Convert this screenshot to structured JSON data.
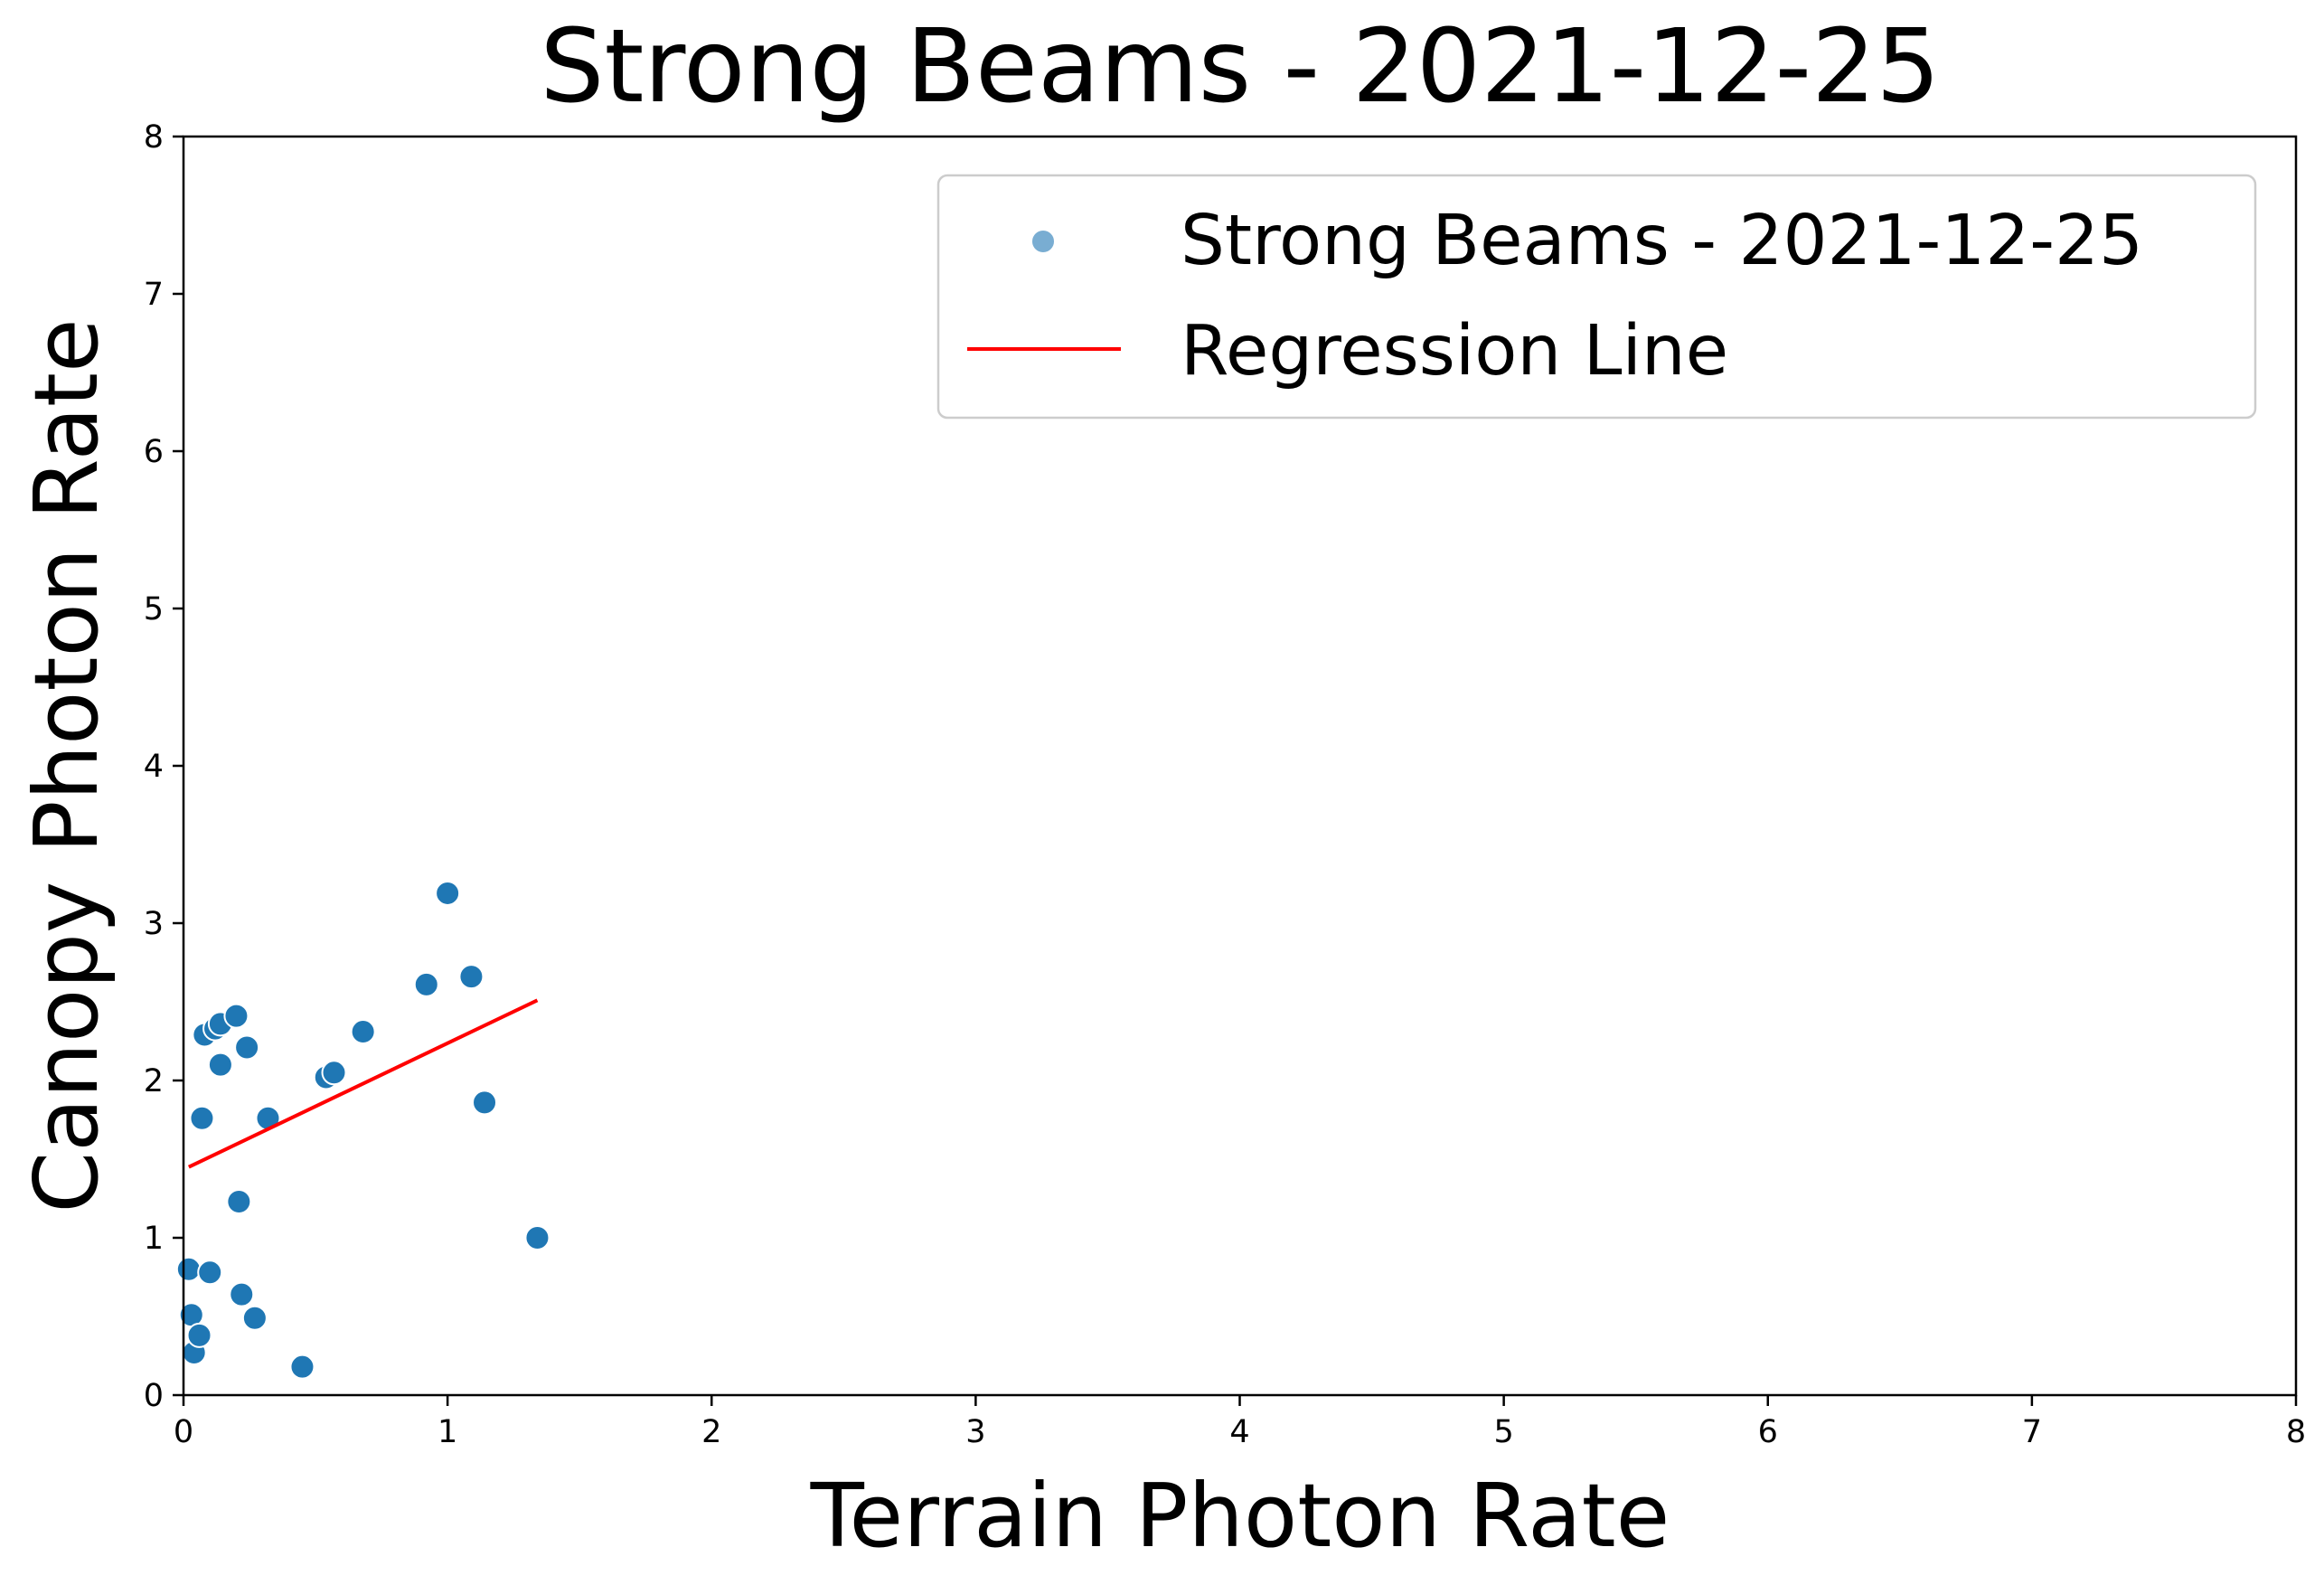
{
  "chart_data": {
    "type": "scatter",
    "title": "Strong Beams - 2021-12-25",
    "xlabel": "Terrain Photon Rate",
    "ylabel": "Canopy Photon Rate",
    "xlim": [
      0,
      8
    ],
    "ylim": [
      0,
      8
    ],
    "xticks": [
      "0",
      "1",
      "2",
      "3",
      "4",
      "5",
      "6",
      "7",
      "8"
    ],
    "yticks": [
      "0",
      "1",
      "2",
      "3",
      "4",
      "5",
      "6",
      "7",
      "8"
    ],
    "grid": false,
    "legend": {
      "placement": "top-right",
      "entries": [
        "Strong Beams - 2021-12-25",
        "Regression Line"
      ]
    },
    "series": [
      {
        "name": "Strong Beams - 2021-12-25",
        "kind": "scatter",
        "color": "#1f77b4",
        "points": [
          [
            0.02,
            0.8
          ],
          [
            0.03,
            0.51
          ],
          [
            0.04,
            0.27
          ],
          [
            0.06,
            0.38
          ],
          [
            0.07,
            1.76
          ],
          [
            0.08,
            2.29
          ],
          [
            0.1,
            0.78
          ],
          [
            0.12,
            2.33
          ],
          [
            0.14,
            2.36
          ],
          [
            0.14,
            2.1
          ],
          [
            0.2,
            2.41
          ],
          [
            0.21,
            1.23
          ],
          [
            0.22,
            0.64
          ],
          [
            0.24,
            2.21
          ],
          [
            0.27,
            0.49
          ],
          [
            0.32,
            1.76
          ],
          [
            0.45,
            0.18
          ],
          [
            0.54,
            2.02
          ],
          [
            0.57,
            2.05
          ],
          [
            0.68,
            2.31
          ],
          [
            0.92,
            2.61
          ],
          [
            1.0,
            3.19
          ],
          [
            1.09,
            2.66
          ],
          [
            1.14,
            1.86
          ],
          [
            1.34,
            1.0
          ]
        ]
      },
      {
        "name": "Regression Line",
        "kind": "line",
        "color": "#ff0000",
        "points": [
          [
            0.02,
            1.45
          ],
          [
            1.34,
            2.51
          ]
        ]
      }
    ]
  }
}
